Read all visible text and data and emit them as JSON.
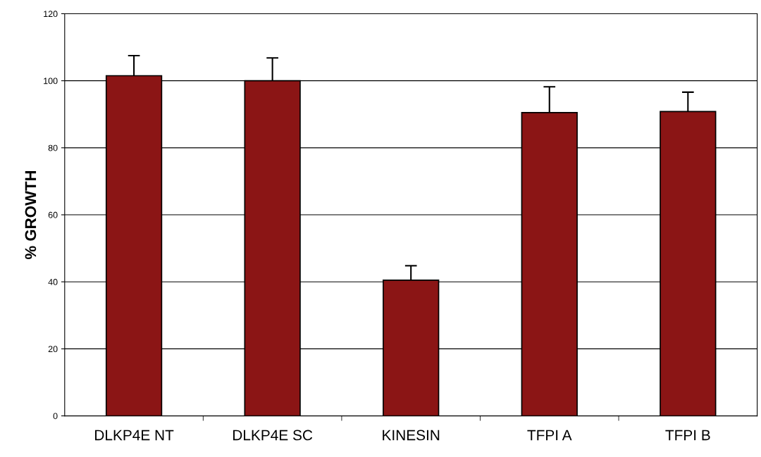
{
  "chart_data": {
    "type": "bar",
    "ylabel": "% GROWTH",
    "categories": [
      "DLKP4E NT",
      "DLKP4E SC",
      "KINESIN",
      "TFPI A",
      "TFPI B"
    ],
    "values": [
      101.5,
      100,
      40.5,
      90.5,
      90.8
    ],
    "errors": [
      6,
      6.8,
      4.3,
      7.7,
      5.8
    ],
    "color": "#8b1515",
    "ylim": [
      0,
      120
    ],
    "yticks": [
      0,
      20,
      40,
      60,
      80,
      100,
      120
    ],
    "grid": "y",
    "legend": false
  }
}
